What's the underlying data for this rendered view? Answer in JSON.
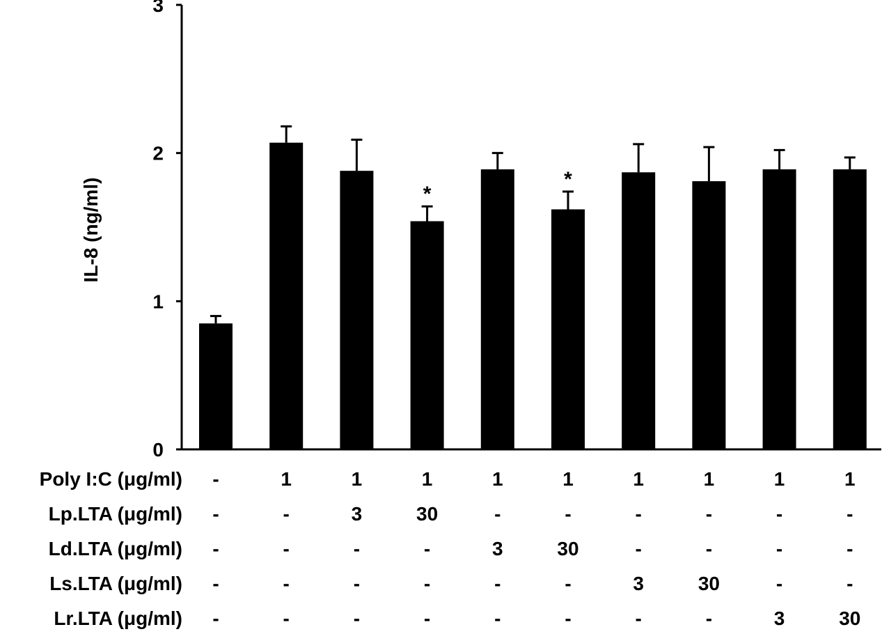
{
  "chart_data": {
    "type": "bar",
    "ylabel": "IL-8 (ng/ml)",
    "ylim": [
      0,
      3
    ],
    "yticks": [
      0,
      1,
      2,
      3
    ],
    "grid": false,
    "colors": {
      "bar": "#000000",
      "axis": "#000000"
    },
    "values": [
      0.85,
      2.07,
      1.88,
      1.54,
      1.89,
      1.62,
      1.87,
      1.81,
      1.89,
      1.89
    ],
    "errors": [
      0.05,
      0.11,
      0.21,
      0.1,
      0.11,
      0.12,
      0.19,
      0.23,
      0.13,
      0.08
    ],
    "significance": [
      "",
      "",
      "",
      "*",
      "",
      "*",
      "",
      "",
      "",
      ""
    ],
    "treatment_table": [
      {
        "label": "Poly I:C (μg/ml)",
        "values": [
          "-",
          "1",
          "1",
          "1",
          "1",
          "1",
          "1",
          "1",
          "1",
          "1"
        ]
      },
      {
        "label": "Lp.LTA (μg/ml)",
        "values": [
          "-",
          "-",
          "3",
          "30",
          "-",
          "-",
          "-",
          "-",
          "-",
          "-"
        ]
      },
      {
        "label": "Ld.LTA (μg/ml)",
        "values": [
          "-",
          "-",
          "-",
          "-",
          "3",
          "30",
          "-",
          "-",
          "-",
          "-"
        ]
      },
      {
        "label": "Ls.LTA (μg/ml)",
        "values": [
          "-",
          "-",
          "-",
          "-",
          "-",
          "-",
          "3",
          "30",
          "-",
          "-"
        ]
      },
      {
        "label": "Lr.LTA (μg/ml)",
        "values": [
          "-",
          "-",
          "-",
          "-",
          "-",
          "-",
          "-",
          "-",
          "3",
          "30"
        ]
      }
    ]
  }
}
